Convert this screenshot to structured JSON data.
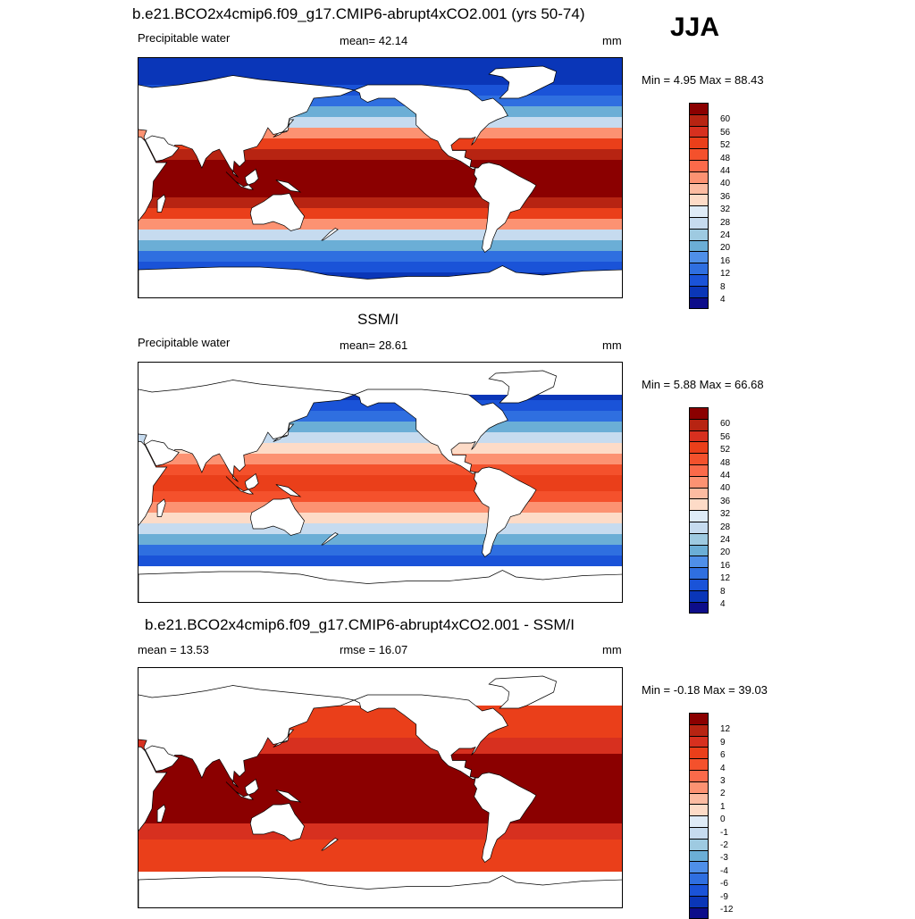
{
  "season": "JJA",
  "colors": {
    "pos": [
      "#fddbc7",
      "#fcbba1",
      "#fc9272",
      "#fb6a4a",
      "#f4512c",
      "#ea3f1a",
      "#d7301f",
      "#b72412",
      "#8b0000"
    ],
    "neg": [
      "#deebf7",
      "#c6dbef",
      "#9ecae1",
      "#6baed6",
      "#4f8fe8",
      "#2f6fe0",
      "#1a53d8",
      "#0a36b8",
      "#0d0d8a"
    ]
  },
  "panels": [
    {
      "title": "b.e21.BCO2x4cmip6.f09_g17.CMIP6-abrupt4xCO2.001 (yrs 50-74)",
      "left_label": "Precipitable water",
      "mid_label": "mean=  42.14",
      "right_label": "mm",
      "minmax": "Min =   4.95 Max =  88.43"
    },
    {
      "title": "SSM/I",
      "left_label": "Precipitable water",
      "mid_label": "mean=  28.61",
      "right_label": "mm",
      "minmax": "Min =   5.88 Max =  66.68"
    },
    {
      "title": "b.e21.BCO2x4cmip6.f09_g17.CMIP6-abrupt4xCO2.001 - SSM/I",
      "left_label": "mean =  13.53",
      "mid_label": "rmse =  16.07",
      "right_label": "mm",
      "minmax": "Min =  -0.18 Max =  39.03"
    }
  ],
  "chart_data": [
    {
      "type": "heatmap",
      "title": "b.e21.BCO2x4cmip6.f09_g17.CMIP6-abrupt4xCO2.001 (yrs 50-74)",
      "variable": "Precipitable water",
      "units": "mm",
      "mean": 42.14,
      "min": 4.95,
      "max": 88.43,
      "colorbar_levels": [
        "60",
        "56",
        "52",
        "48",
        "44",
        "40",
        "36",
        "32",
        "28",
        "24",
        "20",
        "16",
        "12",
        "8",
        "4"
      ]
    },
    {
      "type": "heatmap",
      "title": "SSM/I",
      "variable": "Precipitable water",
      "units": "mm",
      "mean": 28.61,
      "min": 5.88,
      "max": 66.68,
      "colorbar_levels": [
        "60",
        "56",
        "52",
        "48",
        "44",
        "40",
        "36",
        "32",
        "28",
        "24",
        "20",
        "16",
        "12",
        "8",
        "4"
      ]
    },
    {
      "type": "heatmap",
      "title": "b.e21.BCO2x4cmip6.f09_g17.CMIP6-abrupt4xCO2.001 - SSM/I",
      "units": "mm",
      "mean": 13.53,
      "rmse": 16.07,
      "min": -0.18,
      "max": 39.03,
      "colorbar_levels": [
        "12",
        "9",
        "6",
        "4",
        "3",
        "2",
        "1",
        "0",
        "-1",
        "-2",
        "-3",
        "-4",
        "-6",
        "-9",
        "-12"
      ]
    }
  ]
}
